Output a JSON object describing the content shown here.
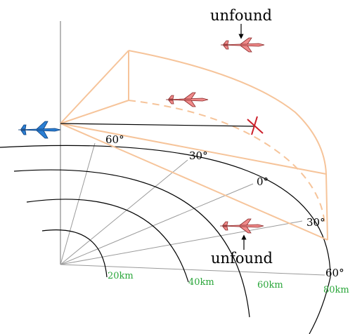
{
  "labels": {
    "unfound_top": "unfound",
    "unfound_bottom": "unfound"
  },
  "angles": {
    "a60_upper": "60°",
    "a30_upper": "30°",
    "a0": "0°",
    "a30_lower": "30°",
    "a60_lower": "60°"
  },
  "ranges": [
    "20km",
    "40km",
    "60km",
    "80km"
  ],
  "colors": {
    "sector": "#f6c49a",
    "range_label": "#2aa63a",
    "friendly_aircraft": "#2b7fd4",
    "target_aircraft": "#f08a8a",
    "target_marker": "#cc1f2a",
    "axis": "#888888",
    "ray": "#9a9a9a",
    "arc": "#000000"
  },
  "icons": {
    "friendly": "jet-icon-blue",
    "target": "jet-icon-pink",
    "marker": "cross-marker-icon"
  }
}
